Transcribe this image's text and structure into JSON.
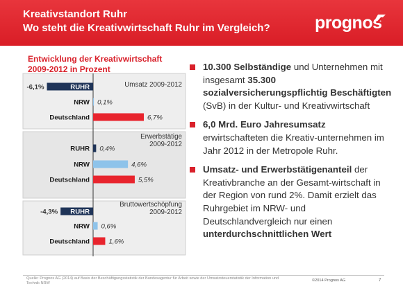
{
  "header": {
    "title_line1": "Kreativstandort Ruhr",
    "title_line2": "Wo steht die Kreativwirtschaft Ruhr im Vergleich?",
    "logo_text": "prognos"
  },
  "colors": {
    "header_red": "#e0242c",
    "bar_ruhr": "#1f3458",
    "bar_nrw": "#8ec3ea",
    "bar_deutschland": "#e8242d",
    "text_red": "#d9212b"
  },
  "chart_data": {
    "type": "bar",
    "orientation": "horizontal",
    "title": "Entwicklung der Kreativwirtschaft 2009-2012 in Prozent",
    "title_lines": [
      "Entwicklung der Kreativwirtschaft",
      "2009-2012 in Prozent"
    ],
    "categories": [
      "RUHR",
      "NRW",
      "Deutschland"
    ],
    "xlim": [
      -6.5,
      7.5
    ],
    "panels": [
      {
        "name_lines": [
          "Umsatz 2009-2012"
        ],
        "values": [
          -6.1,
          0.1,
          6.7
        ],
        "labels": [
          "-6,1%",
          "0,1%",
          "6,7%"
        ]
      },
      {
        "name_lines": [
          "Erwerbstätige",
          "2009-2012"
        ],
        "values": [
          0.4,
          4.6,
          5.5
        ],
        "labels": [
          "0,4%",
          "4,6%",
          "5,5%"
        ]
      },
      {
        "name_lines": [
          "Bruttowertschöpfung",
          "2009-2012"
        ],
        "values": [
          -4.3,
          0.6,
          1.6
        ],
        "labels": [
          "-4,3%",
          "0,6%",
          "1,6%"
        ]
      }
    ]
  },
  "bullets": [
    {
      "parts": [
        {
          "text": "10.300 Selbständige",
          "bold": true
        },
        {
          "text": " und Unternehmen mit insgesamt ",
          "bold": false
        },
        {
          "text": "35.300 sozialversicherungspflichtig Beschäftigten",
          "bold": true
        },
        {
          "text": " (SvB) in der Kultur- und Kreativwirtschaft",
          "bold": false
        }
      ]
    },
    {
      "parts": [
        {
          "text": "6,0 Mrd. Euro Jahresumsatz",
          "bold": true
        },
        {
          "text": " erwirtschafteten die Kreativ-unternehmen im Jahr 2012 in der Metropole Ruhr.",
          "bold": false
        }
      ]
    },
    {
      "parts": [
        {
          "text": "Umsatz- und Erwerbstätigenanteil",
          "bold": true
        },
        {
          "text": " der Kreativbranche an der Gesamt-wirtschaft in der Region von rund 2%. Damit erzielt das Ruhrgebiet im NRW- und Deutschlandvergleich nur einen ",
          "bold": false
        },
        {
          "text": "unterdurchschnittlichen Wert",
          "bold": true
        }
      ]
    }
  ],
  "footer": {
    "source": "Quelle: Prognos AG (2014) auf Basis der Beschäftigungsstatistik der Bundesagentur für Arbeit sowie der Umsatzsteuerstatistik der Information und Technik NRW",
    "copyright": "©2014 Prognos AG",
    "page": "7"
  }
}
